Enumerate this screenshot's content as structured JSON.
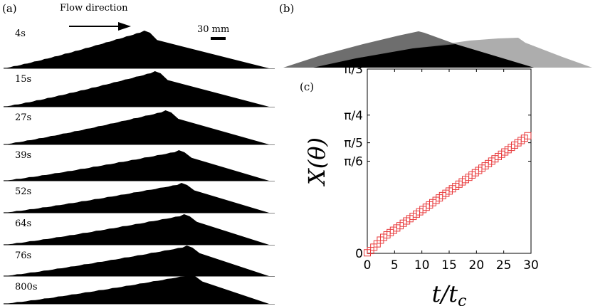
{
  "figure": {
    "panels": [
      {
        "id": "a",
        "label": "(a)"
      },
      {
        "id": "b",
        "label": "(b)"
      },
      {
        "id": "c",
        "label": "(c)"
      }
    ],
    "flow_label": "Flow direction",
    "scale_label": "30 mm",
    "time_labels": [
      "4s",
      "15s",
      "27s",
      "39s",
      "52s",
      "64s",
      "76s",
      "800s"
    ],
    "dune_peaks": [
      0.53,
      0.57,
      0.61,
      0.66,
      0.67,
      0.68,
      0.69,
      0.7
    ],
    "colors": {
      "dune": "#000000",
      "overlay_a": "#555555",
      "overlay_b": "#999999",
      "marker": "#e8393b"
    }
  },
  "chart_data": {
    "type": "scatter",
    "xlabel": "t/t_c",
    "ylabel": "X(θ)",
    "xlim": [
      0,
      30
    ],
    "ylim": [
      0,
      1.0472
    ],
    "xticks": [
      0,
      5,
      10,
      15,
      20,
      25,
      30
    ],
    "xtick_labels": [
      "0",
      "5",
      "10",
      "15",
      "20",
      "25",
      "30"
    ],
    "yticks": [
      0,
      0.5236,
      0.6283,
      0.7854,
      1.0472
    ],
    "ytick_labels": [
      "0",
      "π/6",
      "π/5",
      "π/4",
      "π/3"
    ],
    "series": [
      {
        "marker": "square",
        "color": "#e8393b",
        "x": [
          0,
          0.6,
          1.2,
          1.8,
          2.4,
          3.0,
          3.6,
          4.2,
          4.8,
          5.4,
          6.0,
          6.6,
          7.2,
          7.8,
          8.4,
          9.0,
          9.6,
          10.2,
          10.8,
          11.4,
          12.0,
          12.6,
          13.2,
          13.8,
          14.4,
          15.0,
          15.6,
          16.2,
          16.8,
          17.4,
          18.0,
          18.6,
          19.2,
          19.8,
          20.4,
          21.0,
          21.6,
          22.2,
          22.8,
          23.4,
          24.0,
          24.6,
          25.2,
          25.8,
          26.4,
          27.0,
          27.6,
          28.2,
          28.8,
          29.4
        ],
        "y": [
          0.003,
          0.016,
          0.035,
          0.054,
          0.075,
          0.091,
          0.105,
          0.118,
          0.131,
          0.144,
          0.157,
          0.171,
          0.184,
          0.197,
          0.21,
          0.223,
          0.236,
          0.249,
          0.262,
          0.275,
          0.288,
          0.301,
          0.315,
          0.328,
          0.341,
          0.354,
          0.367,
          0.38,
          0.393,
          0.406,
          0.419,
          0.432,
          0.445,
          0.458,
          0.471,
          0.484,
          0.497,
          0.51,
          0.524,
          0.537,
          0.55,
          0.563,
          0.576,
          0.589,
          0.602,
          0.615,
          0.628,
          0.641,
          0.654,
          0.668
        ]
      }
    ]
  }
}
